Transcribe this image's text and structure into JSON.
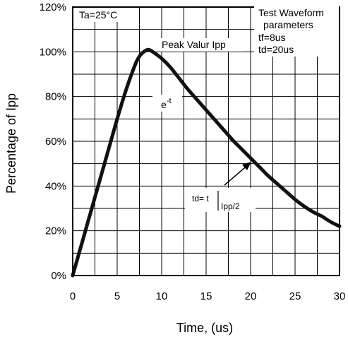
{
  "chart_data": {
    "type": "line",
    "xlabel": "Time, (us)",
    "ylabel": "Percentage of Ipp",
    "xlim": [
      0,
      30
    ],
    "ylim": [
      0,
      120
    ],
    "x_ticks": [
      "0",
      "5",
      "10",
      "15",
      "20",
      "25",
      "30"
    ],
    "y_ticks": [
      "0%",
      "20%",
      "40%",
      "60%",
      "80%",
      "100%",
      "120%"
    ],
    "grid": true,
    "series": [
      {
        "x": [
          0,
          1,
          2,
          3,
          4,
          5,
          6,
          7,
          7.5,
          8,
          8.5,
          9,
          10,
          11,
          12,
          13,
          14,
          15,
          16,
          17,
          18,
          19,
          20,
          21,
          22,
          23,
          24,
          25,
          26,
          27,
          28,
          29,
          30
        ],
        "values": [
          0,
          14,
          28,
          42,
          56,
          70,
          83,
          94,
          98,
          100,
          101,
          100,
          97,
          93,
          88,
          83,
          78.5,
          74,
          69.5,
          65,
          60.5,
          56.5,
          52.5,
          48.5,
          44.5,
          41,
          37.5,
          34,
          31,
          28.5,
          26.5,
          24,
          22
        ]
      }
    ],
    "annotations": {
      "condition": "Ta=25°C",
      "params_title_1": "Test Waveform",
      "params_title_2": "parameters",
      "tf": "tf=8us",
      "td": "td=20us",
      "peak": "Peak Valur Ipp",
      "decay_base": "e",
      "decay_exp": "-t",
      "td_label": "td= t",
      "td_sub": "Ipp/2"
    }
  }
}
